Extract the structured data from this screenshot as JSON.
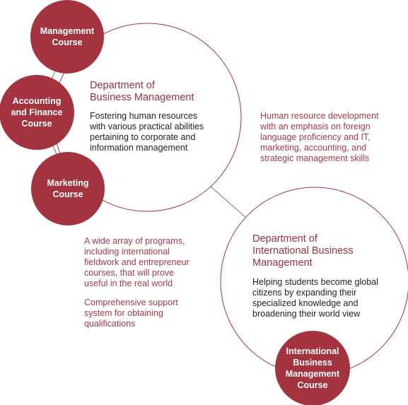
{
  "colors": {
    "accent": "#a3343f",
    "note_text": "#a83a4a",
    "body_text": "#222222"
  },
  "dept_business": {
    "title_line1": "Department of",
    "title_line2": "Business Management",
    "desc": [
      "Fostering human resources",
      "with various practical abilities",
      "pertaining to corporate and",
      "information management"
    ]
  },
  "dept_international": {
    "title_line1": "Department of",
    "title_line2": "International Business",
    "title_line3": "Management",
    "desc": [
      "Helping students become global",
      "citizens by expanding their",
      "specialized knowledge and",
      "broadening their world view"
    ]
  },
  "note_right": [
    "Human resource development",
    "with an emphasis on foreign",
    "language proficiency and IT,",
    "marketing, accounting, and",
    "strategic management skills"
  ],
  "note_left_1": [
    "A wide array of programs,",
    "including international",
    "fieldwork and entrepreneur",
    "courses, that will prove",
    "useful in the real world"
  ],
  "note_left_2": [
    "Comprehensive support",
    "system for obtaining",
    "qualifications"
  ],
  "courses": {
    "management": [
      "Management",
      "Course"
    ],
    "accounting": [
      "Accounting",
      "and Finance",
      "Course"
    ],
    "marketing": [
      "Marketing",
      "Course"
    ],
    "international": [
      "International",
      "Business",
      "Management",
      "Course"
    ]
  }
}
